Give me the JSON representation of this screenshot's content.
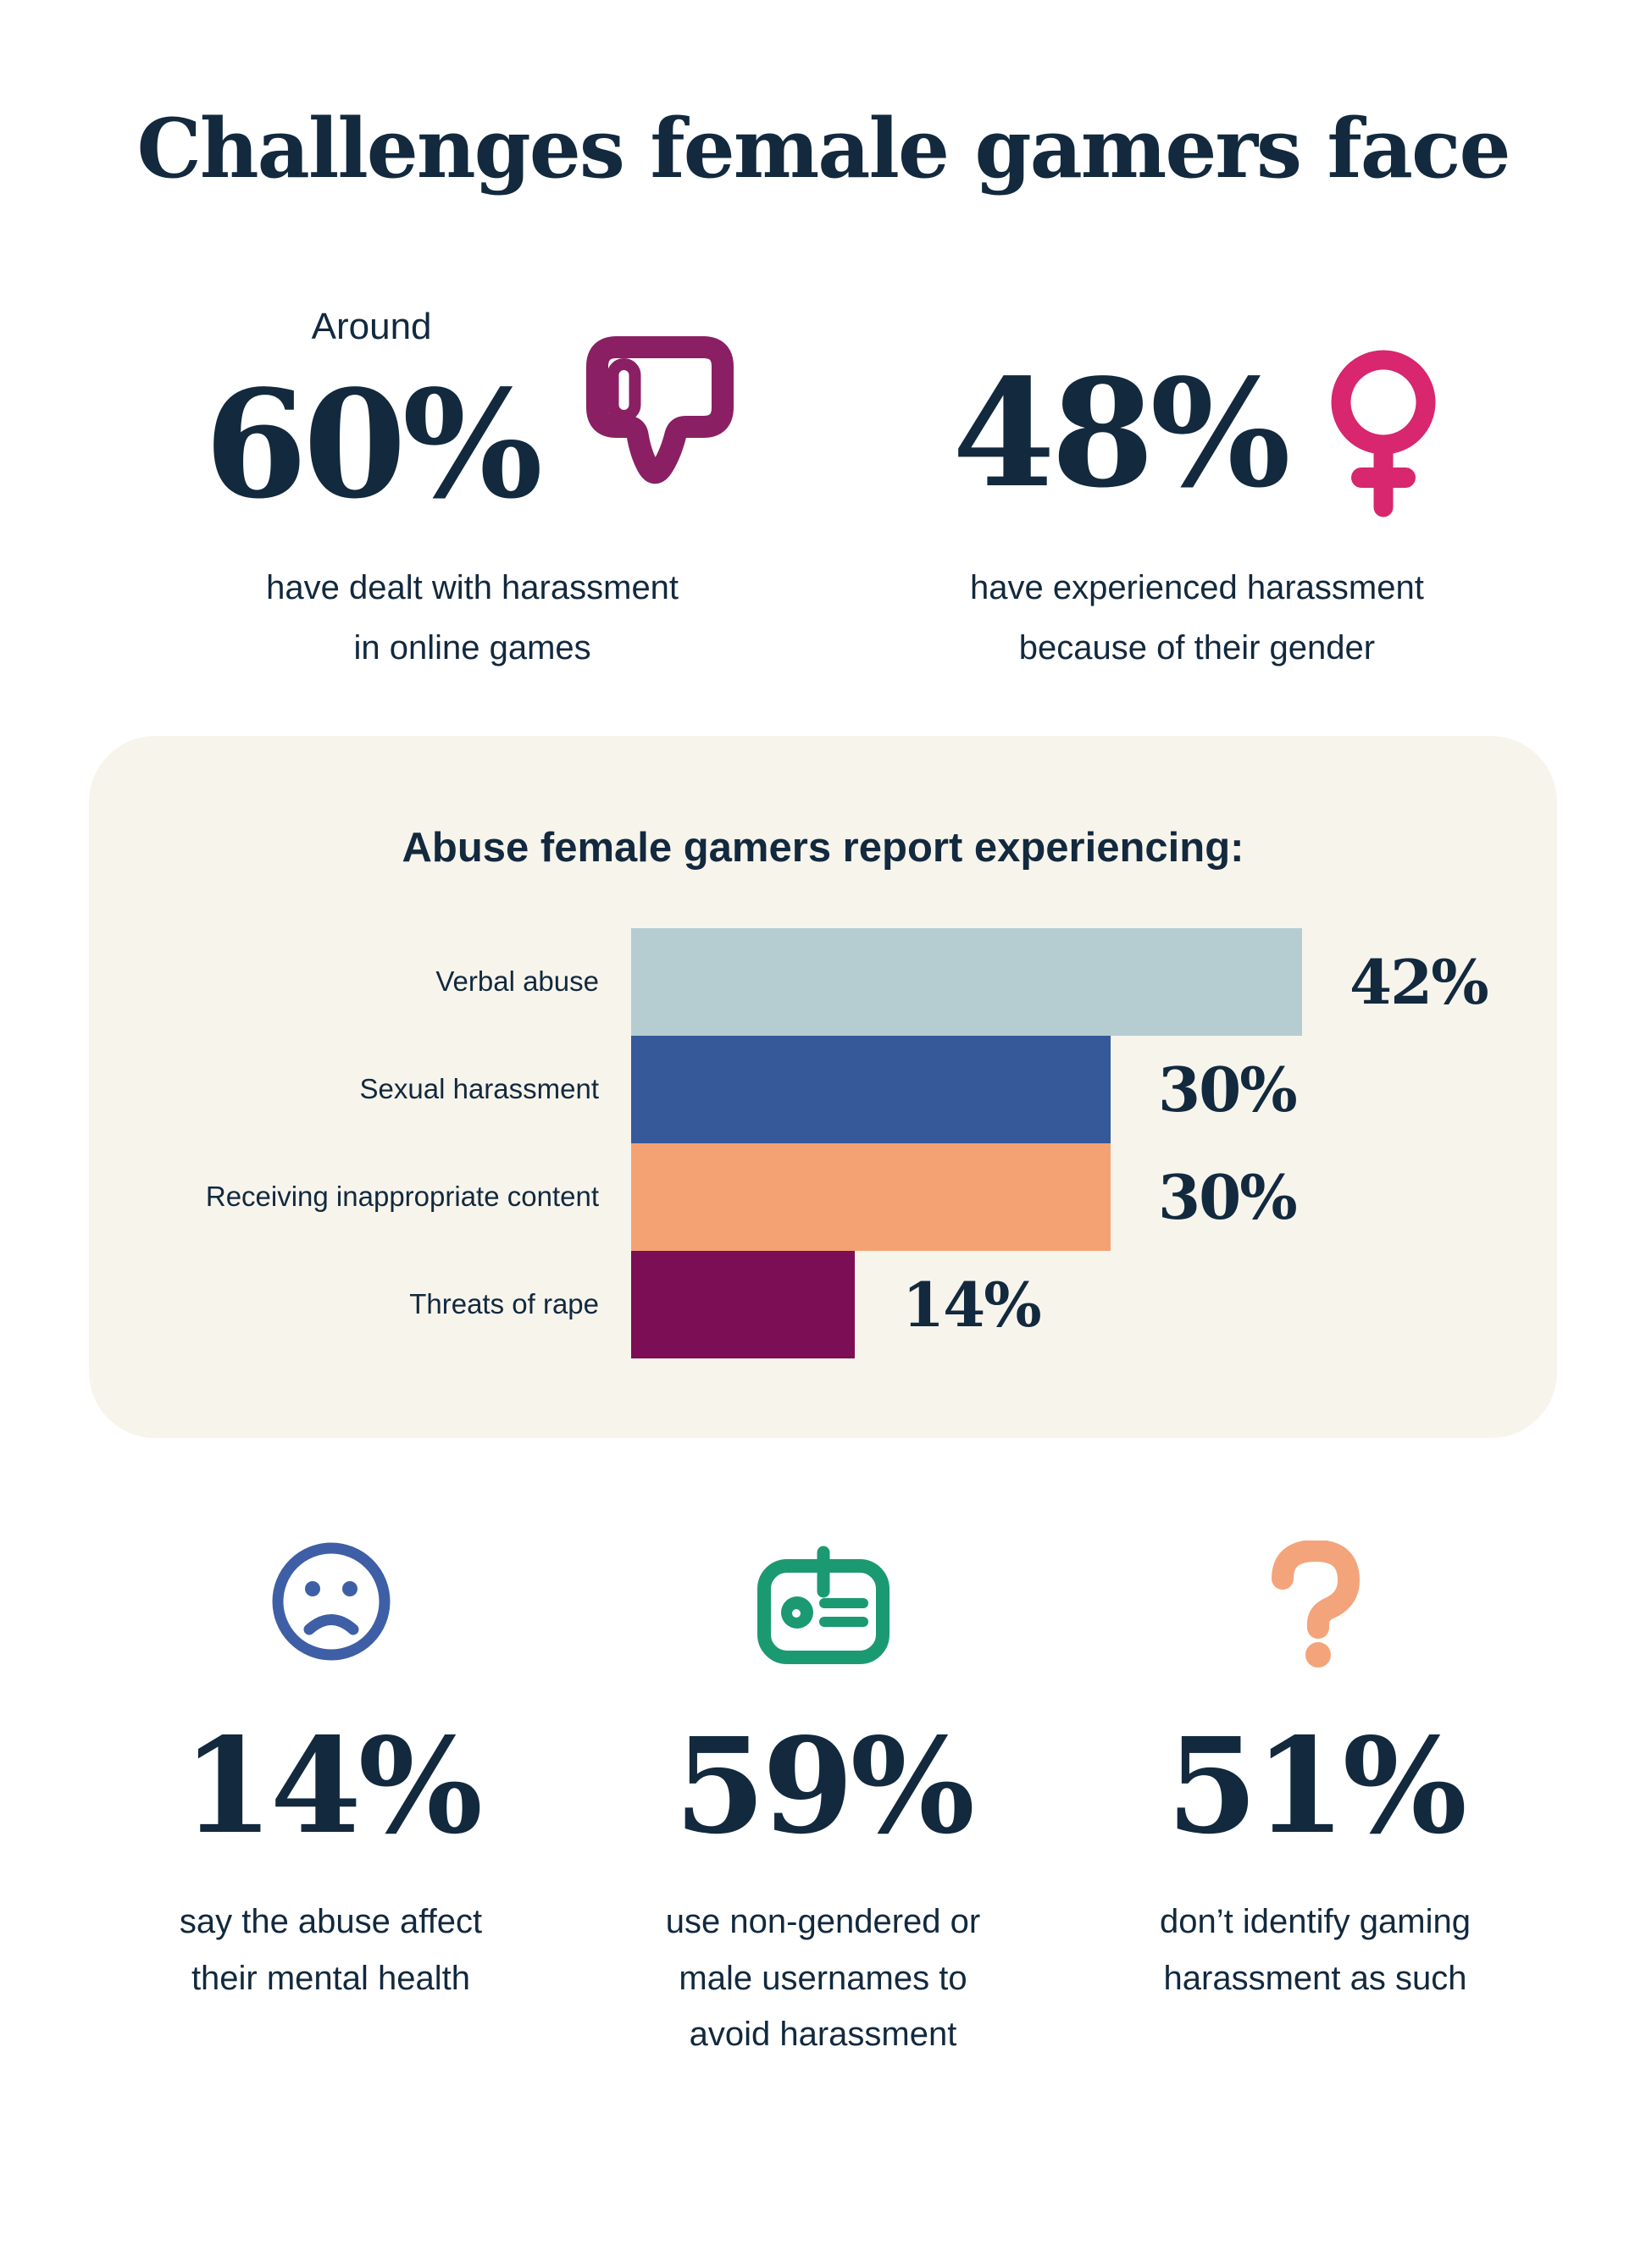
{
  "colors": {
    "background": "#ffffff",
    "navy_text": "#12293e",
    "card_cream": "#f7f4ec",
    "thumbs_down_plum": "#8b1f63",
    "female_symbol_pink": "#d8266f",
    "sad_face_blue": "#3e5fa6",
    "id_badge_green": "#1b9a71",
    "question_mark_orange": "#f3a47b"
  },
  "title": "Challenges female gamers face",
  "top_stats": [
    {
      "prefix": "Around",
      "value": "60%",
      "icon": "thumbs-down-icon",
      "icon_color": "#8b1f63",
      "caption_line1": "have dealt with harassment",
      "caption_line2": "in online games"
    },
    {
      "value": "48%",
      "icon": "female-symbol-icon",
      "icon_color": "#d8266f",
      "caption_line1": "have experienced harassment",
      "caption_line2": "because of their gender"
    }
  ],
  "chart_data": {
    "type": "bar",
    "orientation": "horizontal",
    "title": "Abuse female gamers report experiencing:",
    "categories": [
      "Verbal abuse",
      "Sexual harassment",
      "Receiving inappropriate content",
      "Threats of rape"
    ],
    "values": [
      42,
      30,
      30,
      14
    ],
    "value_labels": [
      "42%",
      "30%",
      "30%",
      "14%"
    ],
    "bar_colors": [
      "#b5cdd0",
      "#36599a",
      "#f4a274",
      "#7c0e55"
    ],
    "xlim": [
      0,
      42
    ],
    "grid": false,
    "legend": null,
    "card_background": "#f7f4ec"
  },
  "bottom_stats": [
    {
      "icon": "sad-face-icon",
      "icon_color": "#3e5fa6",
      "value": "14%",
      "caption_line1": "say the abuse affect",
      "caption_line2": "their mental health",
      "caption_line3": ""
    },
    {
      "icon": "id-badge-icon",
      "icon_color": "#1b9a71",
      "value": "59%",
      "caption_line1": "use non-gendered or",
      "caption_line2": "male usernames to",
      "caption_line3": "avoid harassment"
    },
    {
      "icon": "question-mark-icon",
      "icon_color": "#f3a47b",
      "value": "51%",
      "caption_line1": "don’t identify gaming",
      "caption_line2": "harassment as such",
      "caption_line3": ""
    }
  ]
}
